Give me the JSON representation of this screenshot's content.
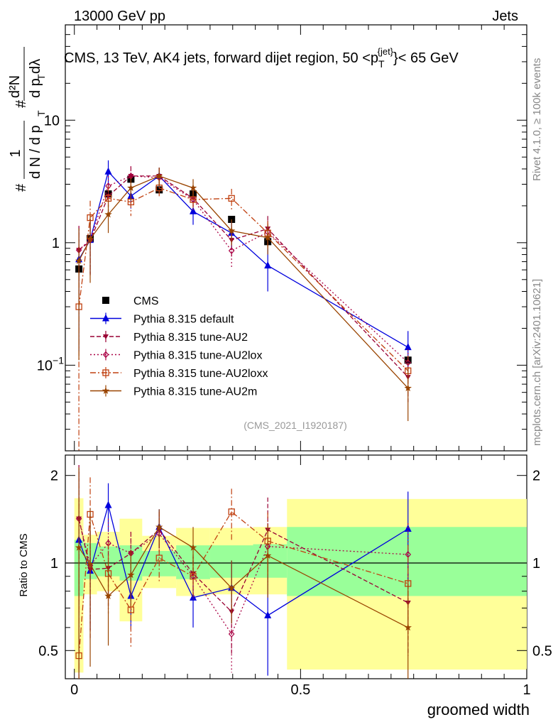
{
  "header": {
    "left": "13000 GeV pp",
    "right": "Jets",
    "rivet_side": "Rivet 4.1.0, ≥ 100k events",
    "mcplots_side": "mcplots.cern.ch [arXiv:2401.10621]"
  },
  "colors": {
    "cms": "#000000",
    "default": "#0000dd",
    "au2": "#990033",
    "au2lox": "#aa0044",
    "au2loxx": "#c04010",
    "au2m": "#994400",
    "band_inner": "#99ff99",
    "band_outer": "#ffff99"
  },
  "chart_data": [
    {
      "type": "scatter",
      "panel": "main",
      "title": "CMS, 13 TeV, AK4 jets, forward dijet region, 50 <p",
      "title_sup": "{jet}",
      "title_sub": "T",
      "title_tail": "}< 65 GeV",
      "ylabel": {
        "hash": "#",
        "num": "1",
        "den": "d N / d p",
        "den_sub": "T",
        "hash2": "#",
        "num2": "d²N",
        "den2": "d p",
        "den2_sub": "T",
        "den2_tail": " dλ"
      },
      "yscale": "log",
      "ylim": [
        0.02,
        60
      ],
      "xlim": [
        -0.02,
        1.0
      ],
      "yticks": [
        {
          "value": 0.1,
          "base": "10",
          "exp": "−1"
        },
        {
          "value": 1,
          "label": "1"
        },
        {
          "value": 10,
          "label": "10"
        }
      ],
      "watermark": "(CMS_2021_I1920187)",
      "x": [
        0.01,
        0.035,
        0.075,
        0.125,
        0.1875,
        0.2625,
        0.3475,
        0.4275,
        0.7375
      ],
      "series": [
        {
          "name": "CMS",
          "key": "cms",
          "marker": "square",
          "values": [
            0.61,
            1.08,
            2.5,
            3.3,
            2.7,
            2.5,
            1.55,
            1.02,
            0.11
          ],
          "err": [
            0.02,
            0.05,
            0.1,
            0.12,
            0.1,
            0.1,
            0.06,
            0.04,
            0.01
          ],
          "line": "none"
        },
        {
          "name": "Pythia 8.315 default",
          "key": "default",
          "marker": "triangle-up",
          "values": [
            0.73,
            1.05,
            3.8,
            2.4,
            3.5,
            1.8,
            1.2,
            0.65,
            0.14
          ],
          "err": [
            0.6,
            0.5,
            0.9,
            0.5,
            0.6,
            0.4,
            0.3,
            0.25,
            0.05
          ],
          "line": "solid"
        },
        {
          "name": "Pythia 8.315 tune-AU2",
          "key": "au2",
          "marker": "triangle-down",
          "values": [
            0.87,
            1.03,
            2.4,
            3.5,
            3.5,
            2.3,
            1.05,
            1.3,
            0.08
          ],
          "err": [
            0.5,
            0.5,
            0.6,
            0.7,
            0.6,
            0.4,
            0.3,
            0.35,
            0.03
          ],
          "line": "dashed"
        },
        {
          "name": "Pythia 8.315 tune-AU2lox",
          "key": "au2lox",
          "marker": "diamond",
          "values": [
            0.87,
            1.06,
            2.9,
            3.5,
            3.4,
            2.25,
            0.86,
            1.22,
            0.105
          ],
          "err": [
            0.5,
            0.5,
            0.6,
            0.7,
            0.6,
            0.4,
            0.25,
            0.3,
            0.03
          ],
          "line": "dotted"
        },
        {
          "name": "Pythia 8.315 tune-AU2loxx",
          "key": "au2loxx",
          "marker": "open-square",
          "values": [
            0.3,
            1.6,
            2.3,
            2.15,
            2.8,
            2.25,
            2.3,
            1.2,
            0.09
          ],
          "err": [
            0.29,
            0.6,
            0.6,
            0.5,
            0.5,
            0.4,
            0.45,
            0.3,
            0.03
          ],
          "line": "dashdot"
        },
        {
          "name": "Pythia 8.315 tune-AU2m",
          "key": "au2m",
          "marker": "star",
          "values": [
            0.71,
            1.07,
            1.7,
            2.8,
            3.5,
            2.8,
            1.25,
            1.1,
            0.065
          ],
          "err": [
            0.6,
            0.6,
            0.5,
            0.6,
            0.6,
            0.5,
            0.3,
            0.3,
            0.03
          ],
          "line": "solid"
        }
      ]
    },
    {
      "type": "scatter",
      "panel": "ratio",
      "ylabel": "Ratio to CMS",
      "xlabel": "groomed width",
      "yscale": "log",
      "ylim": [
        0.4,
        2.35
      ],
      "xlim": [
        -0.02,
        1.0
      ],
      "yticks": [
        {
          "value": 0.5,
          "label": "0.5"
        },
        {
          "value": 1,
          "label": "1"
        },
        {
          "value": 2,
          "label": "2"
        }
      ],
      "xticks": [
        {
          "value": 0,
          "label": "0"
        },
        {
          "value": 0.5,
          "label": "0.5"
        },
        {
          "value": 1,
          "label": "1"
        }
      ],
      "bins": [
        {
          "x0": 0.0,
          "x1": 0.02,
          "inner": [
            0.77,
            1.2
          ],
          "outer": [
            0.42,
            1.67
          ]
        },
        {
          "x0": 0.02,
          "x1": 0.05,
          "inner": [
            0.88,
            1.17
          ],
          "outer": [
            0.78,
            1.25
          ]
        },
        {
          "x0": 0.05,
          "x1": 0.1,
          "inner": [
            0.9,
            1.14
          ],
          "outer": [
            0.8,
            1.28
          ]
        },
        {
          "x0": 0.1,
          "x1": 0.15,
          "inner": [
            0.87,
            1.15
          ],
          "outer": [
            0.63,
            1.42
          ]
        },
        {
          "x0": 0.15,
          "x1": 0.225,
          "inner": [
            0.9,
            1.1
          ],
          "outer": [
            0.82,
            1.24
          ]
        },
        {
          "x0": 0.225,
          "x1": 0.3,
          "inner": [
            0.88,
            1.15
          ],
          "outer": [
            0.77,
            1.32
          ]
        },
        {
          "x0": 0.3,
          "x1": 0.395,
          "inner": [
            0.89,
            1.15
          ],
          "outer": [
            0.78,
            1.32
          ]
        },
        {
          "x0": 0.395,
          "x1": 0.47,
          "inner": [
            0.89,
            1.16
          ],
          "outer": [
            0.78,
            1.33
          ]
        },
        {
          "x0": 0.47,
          "x1": 1.0,
          "inner": [
            0.77,
            1.33
          ],
          "outer": [
            0.43,
            1.66
          ]
        }
      ],
      "x": [
        0.01,
        0.035,
        0.075,
        0.125,
        0.1875,
        0.2625,
        0.3475,
        0.4275,
        0.7375
      ],
      "series": [
        {
          "key": "default",
          "values": [
            1.2,
            0.94,
            1.58,
            0.77,
            1.33,
            0.76,
            0.82,
            0.66,
            1.31
          ],
          "err": [
            0.9,
            0.35,
            0.3,
            0.18,
            0.2,
            0.16,
            0.2,
            0.25,
            0.45
          ]
        },
        {
          "key": "au2",
          "values": [
            1.42,
            0.95,
            0.96,
            1.08,
            1.3,
            0.92,
            0.68,
            1.3,
            0.73
          ],
          "err": [
            0.75,
            0.4,
            0.25,
            0.2,
            0.2,
            0.15,
            0.2,
            0.38,
            0.25
          ]
        },
        {
          "key": "au2lox",
          "values": [
            1.42,
            0.98,
            1.17,
            1.08,
            1.26,
            0.9,
            0.57,
            1.14,
            1.07
          ],
          "err": [
            0.75,
            0.4,
            0.25,
            0.2,
            0.2,
            0.15,
            0.15,
            0.3,
            0.3
          ]
        },
        {
          "key": "au2loxx",
          "values": [
            0.48,
            1.47,
            0.92,
            0.69,
            1.04,
            0.9,
            1.5,
            1.19,
            0.85
          ],
          "err": [
            0.45,
            0.5,
            0.25,
            0.18,
            0.18,
            0.15,
            0.3,
            0.3,
            0.3
          ]
        },
        {
          "key": "au2m",
          "values": [
            1.13,
            0.99,
            0.77,
            0.91,
            1.33,
            1.13,
            0.82,
            1.06,
            0.6
          ],
          "err": [
            1.0,
            0.55,
            0.25,
            0.2,
            0.2,
            0.2,
            0.2,
            0.3,
            0.25
          ]
        }
      ]
    }
  ]
}
